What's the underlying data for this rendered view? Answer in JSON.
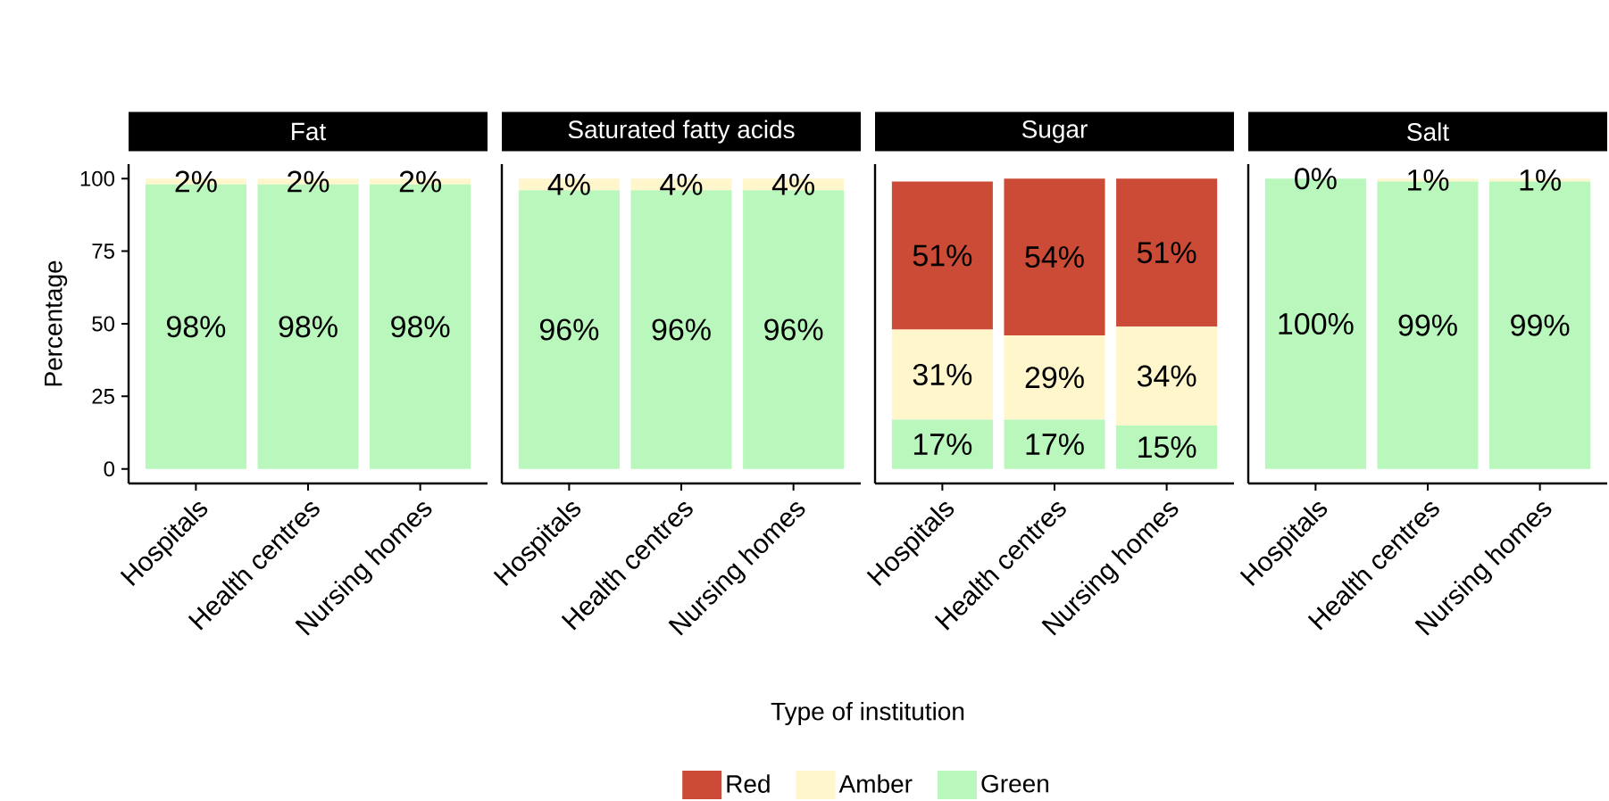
{
  "chart_data": [
    {
      "type": "bar",
      "title": "Fat",
      "ylabel": "Percentage",
      "stacked": true,
      "categories": [
        "Hospitals",
        "Health centres",
        "Nursing homes"
      ],
      "ylim": [
        -5,
        105
      ],
      "yticks": [
        0,
        25,
        50,
        75,
        100
      ],
      "series": [
        {
          "color": "#b9f7bd",
          "values": [
            98,
            98,
            98
          ],
          "value_labels": [
            "98%",
            "98%",
            "98%"
          ]
        },
        {
          "color": "#fff6cc",
          "values": [
            2,
            2,
            2
          ],
          "value_labels": [
            "2%",
            "2%",
            "2%"
          ]
        }
      ]
    },
    {
      "type": "bar",
      "title": "Saturated fatty acids",
      "xlabel": "Type of institution",
      "stacked": true,
      "tick_labels": "x",
      "categories": [
        "Hospitals",
        "Health centres",
        "Nursing homes"
      ],
      "ylim": [
        -5,
        105
      ],
      "series": [
        {
          "color": "#b9f7bd",
          "values": [
            96,
            96,
            96
          ],
          "value_labels": [
            "96%",
            "96%",
            "96%"
          ]
        },
        {
          "color": "#fff6cc",
          "values": [
            4,
            4,
            4
          ],
          "value_labels": [
            "4%",
            "4%",
            "4%"
          ]
        }
      ]
    },
    {
      "type": "bar",
      "title": "Sugar",
      "stacked": true,
      "tick_labels": "x",
      "legend": "bottom",
      "categories": [
        "Hospitals",
        "Health centres",
        "Nursing homes"
      ],
      "ylim": [
        -5,
        105
      ],
      "series": [
        {
          "name": "Green",
          "color": "#b9f7bd",
          "values": [
            17,
            17,
            15
          ],
          "value_labels": [
            "17%",
            "17%",
            "15%"
          ]
        },
        {
          "name": "Amber",
          "color": "#fff6cc",
          "values": [
            31,
            29,
            34
          ],
          "value_labels": [
            "31%",
            "29%",
            "34%"
          ]
        },
        {
          "name": "Red",
          "color": "#cb4b36",
          "values": [
            51,
            54,
            51
          ],
          "value_labels": [
            "51%",
            "54%",
            "51%"
          ]
        }
      ]
    },
    {
      "type": "bar",
      "title": "Salt",
      "stacked": true,
      "tick_labels": "x",
      "categories": [
        "Hospitals",
        "Health centres",
        "Nursing homes"
      ],
      "ylim": [
        -5,
        105
      ],
      "series": [
        {
          "color": "#b9f7bd",
          "values": [
            100,
            99,
            99
          ],
          "value_labels": [
            "100%",
            "99%",
            "99%"
          ]
        },
        {
          "color": "#fff6cc",
          "values": [
            0,
            1,
            1
          ],
          "value_labels": [
            "0%",
            "1%",
            "1%"
          ]
        }
      ]
    }
  ]
}
